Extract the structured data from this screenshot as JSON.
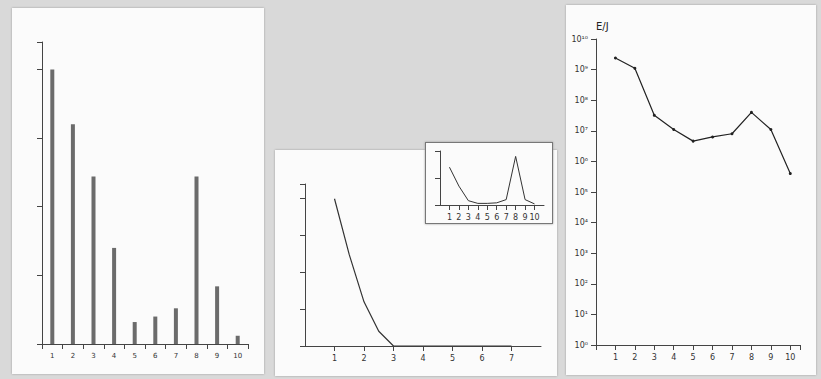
{
  "chart_data": [
    {
      "type": "bar",
      "categories": [
        "1",
        "2",
        "3",
        "4",
        "5",
        "6",
        "7",
        "8",
        "9",
        "10"
      ],
      "values": [
        1.0,
        0.8,
        0.61,
        0.35,
        0.08,
        0.1,
        0.13,
        0.61,
        0.21,
        0.03
      ],
      "color": "#6b6b6b",
      "ylim": [
        0,
        1.1
      ],
      "yticks": [
        0,
        0.25,
        0.5,
        0.75,
        1
      ],
      "tick_labels": "x",
      "grid": false
    },
    {
      "type": "line",
      "x": [
        1,
        1.5,
        2,
        2.5,
        3,
        4,
        5,
        6,
        7
      ],
      "values": [
        1.0,
        0.62,
        0.3,
        0.1,
        0,
        0,
        0,
        0,
        0
      ],
      "color": "#333333",
      "marker": "none",
      "xlim": [
        0,
        8
      ],
      "xticks": [
        1,
        2,
        3,
        4,
        5,
        6,
        7
      ],
      "ylim": [
        0,
        1.1
      ],
      "yticks": [
        0,
        0.25,
        0.5,
        0.75,
        1
      ],
      "tick_labels": "x",
      "grid": false
    },
    {
      "type": "line",
      "x": [
        1,
        2,
        3,
        4,
        5,
        6,
        7,
        8,
        9,
        10
      ],
      "values": [
        0.7,
        0.35,
        0.08,
        0.03,
        0.03,
        0.04,
        0.1,
        0.9,
        0.1,
        0.02
      ],
      "color": "#333333",
      "marker": "none",
      "xlim": [
        0,
        11
      ],
      "xticks": [
        1,
        2,
        3,
        4,
        5,
        6,
        7,
        8,
        9,
        10
      ],
      "ylim": [
        0,
        1
      ],
      "yticks": [
        0,
        0.5,
        1
      ],
      "tick_labels": "x",
      "grid": false
    },
    {
      "type": "line",
      "x": [
        1,
        2,
        3,
        4,
        5,
        6,
        7,
        8,
        9,
        10
      ],
      "values": [
        2400000000,
        1100000000,
        32000000,
        11000000,
        4600000,
        6300000,
        8000000,
        40000000,
        11000000,
        400000
      ],
      "y_label": "E/J",
      "color": "#222222",
      "marker": "circle",
      "log": "y",
      "xlim": [
        0,
        10.5
      ],
      "xticks": [
        1,
        2,
        3,
        4,
        5,
        6,
        7,
        8,
        9,
        10
      ],
      "ylim": [
        1,
        10000000000
      ],
      "yticks": [
        {
          "value": 1,
          "label": "10⁰"
        },
        {
          "value": 10,
          "label": "10¹"
        },
        {
          "value": 100,
          "label": "10²"
        },
        {
          "value": 1000,
          "label": "10³"
        },
        {
          "value": 10000,
          "label": "10⁴"
        },
        {
          "value": 100000,
          "label": "10⁵"
        },
        {
          "value": 1000000,
          "label": "10⁶"
        },
        {
          "value": 10000000,
          "label": "10⁷"
        },
        {
          "value": 100000000,
          "label": "10⁸"
        },
        {
          "value": 1000000000,
          "label": "10⁹"
        },
        {
          "value": 10000000000,
          "label": "10¹⁰"
        }
      ],
      "grid": false
    }
  ]
}
